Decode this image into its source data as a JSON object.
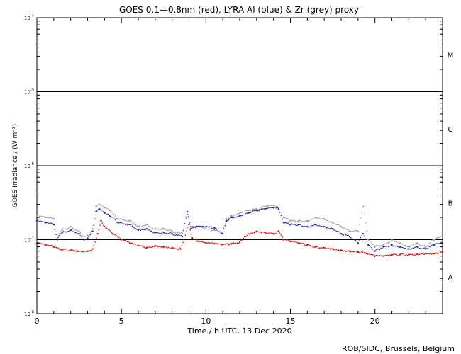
{
  "chart_data": {
    "type": "scatter",
    "title": "GOES 0.1—0.8nm (red), LYRA Al (blue) & Zr (grey) proxy",
    "xlabel": "Time / h UTC, 13 Dec 2020",
    "ylabel": "GOES Irradiance / (W m⁻²)",
    "credit": "ROB/SIDC, Brussels, Belgium",
    "xlim": [
      0,
      24
    ],
    "ylim": [
      1e-08,
      0.0001
    ],
    "yscale": "log",
    "x_ticks": [
      0,
      5,
      10,
      15,
      20
    ],
    "y_ticks": [
      {
        "value": 1e-08,
        "base": "10",
        "exp": "-8"
      },
      {
        "value": 1e-07,
        "base": "10",
        "exp": "-7"
      },
      {
        "value": 1e-06,
        "base": "10",
        "exp": "-6"
      },
      {
        "value": 1e-05,
        "base": "10",
        "exp": "-5"
      },
      {
        "value": 0.0001,
        "base": "10",
        "exp": "-4"
      }
    ],
    "threshold_lines": [
      1e-07,
      1e-06,
      1e-05
    ],
    "flare_classes": [
      {
        "label": "A",
        "value": 3.16e-08
      },
      {
        "label": "B",
        "value": 3.16e-07
      },
      {
        "label": "C",
        "value": 3.16e-06
      },
      {
        "label": "M",
        "value": 3.16e-05
      }
    ],
    "series": [
      {
        "color": "#999999",
        "x": [
          0.0,
          0.5,
          1.0,
          1.2,
          1.5,
          2.0,
          2.5,
          2.8,
          3.0,
          3.3,
          3.5,
          3.7,
          4.0,
          4.3,
          4.8,
          5.5,
          6.0,
          6.5,
          7.0,
          7.5,
          8.0,
          8.6,
          8.9,
          9.1,
          9.5,
          10.0,
          10.5,
          11.0,
          11.2,
          11.5,
          12.0,
          12.5,
          13.0,
          13.5,
          14.0,
          14.3,
          14.6,
          15.0,
          15.5,
          16.0,
          16.5,
          17.0,
          17.5,
          18.0,
          18.5,
          19.0,
          19.3,
          19.6,
          20.0,
          20.5,
          21.0,
          21.5,
          22.0,
          22.5,
          23.0,
          23.5,
          24.0
        ],
        "values": [
          2.1e-07,
          2e-07,
          1.9e-07,
          1.05e-07,
          1.35e-07,
          1.5e-07,
          1.3e-07,
          1.1e-07,
          1.15e-07,
          1.4e-07,
          2.8e-07,
          3e-07,
          2.7e-07,
          2.5e-07,
          1.9e-07,
          1.8e-07,
          1.5e-07,
          1.6e-07,
          1.4e-07,
          1.4e-07,
          1.3e-07,
          1.2e-07,
          2.2e-07,
          1.5e-07,
          1.5e-07,
          1.4e-07,
          1.35e-07,
          1.25e-07,
          1.9e-07,
          2.1e-07,
          2.3e-07,
          2.5e-07,
          2.6e-07,
          2.8e-07,
          2.9e-07,
          2.7e-07,
          2e-07,
          1.8e-07,
          1.8e-07,
          1.8e-07,
          2e-07,
          1.9e-07,
          1.7e-07,
          1.5e-07,
          1.3e-07,
          1.3e-07,
          2.8e-07,
          1e-07,
          8e-08,
          8.5e-08,
          1e-07,
          9e-08,
          8e-08,
          9e-08,
          8e-08,
          1e-07,
          1.1e-07
        ]
      },
      {
        "color": "#1f1fbf",
        "x": [
          0.0,
          0.5,
          1.0,
          1.2,
          1.5,
          2.0,
          2.5,
          2.8,
          3.0,
          3.3,
          3.5,
          3.7,
          4.0,
          4.3,
          4.8,
          5.5,
          6.0,
          6.5,
          7.0,
          7.5,
          8.0,
          8.6,
          8.9,
          9.1,
          9.5,
          10.0,
          10.5,
          11.0,
          11.2,
          11.5,
          12.0,
          12.5,
          13.0,
          13.5,
          14.0,
          14.3,
          14.6,
          15.0,
          15.5,
          16.0,
          16.5,
          17.0,
          17.5,
          18.0,
          18.5,
          19.0,
          19.3,
          19.6,
          20.0,
          20.5,
          21.0,
          21.5,
          22.0,
          22.5,
          23.0,
          23.5,
          24.0
        ],
        "values": [
          1.8e-07,
          1.7e-07,
          1.6e-07,
          1e-07,
          1.25e-07,
          1.35e-07,
          1.2e-07,
          1e-07,
          1.05e-07,
          1.3e-07,
          2.4e-07,
          2.6e-07,
          2.3e-07,
          2.1e-07,
          1.7e-07,
          1.6e-07,
          1.35e-07,
          1.4e-07,
          1.25e-07,
          1.25e-07,
          1.2e-07,
          1.1e-07,
          2.4e-07,
          1.4e-07,
          1.5e-07,
          1.5e-07,
          1.45e-07,
          1.2e-07,
          1.8e-07,
          2e-07,
          2.1e-07,
          2.3e-07,
          2.5e-07,
          2.6e-07,
          2.7e-07,
          2.6e-07,
          1.7e-07,
          1.6e-07,
          1.6e-07,
          1.5e-07,
          1.6e-07,
          1.5e-07,
          1.4e-07,
          1.2e-07,
          1.1e-07,
          9e-08,
          1.2e-07,
          8.5e-08,
          7e-08,
          8e-08,
          8.5e-08,
          8e-08,
          7.5e-08,
          8e-08,
          7.5e-08,
          8.5e-08,
          9e-08
        ]
      },
      {
        "color": "#dd0000",
        "x": [
          0.0,
          0.5,
          1.0,
          1.5,
          2.0,
          2.5,
          3.0,
          3.3,
          3.6,
          3.8,
          4.0,
          4.5,
          5.0,
          5.5,
          6.0,
          6.5,
          7.0,
          7.5,
          8.0,
          8.5,
          9.0,
          9.2,
          9.5,
          10.0,
          10.5,
          11.0,
          11.5,
          12.0,
          12.3,
          12.5,
          13.0,
          13.5,
          14.0,
          14.3,
          14.6,
          15.0,
          15.5,
          16.0,
          16.5,
          17.0,
          17.5,
          18.0,
          18.5,
          19.0,
          19.5,
          20.0,
          20.5,
          21.0,
          21.5,
          22.0,
          22.5,
          23.0,
          23.5,
          24.0
        ],
        "values": [
          9e-08,
          8.5e-08,
          8e-08,
          7.3e-08,
          7.2e-08,
          7e-08,
          7e-08,
          7.5e-08,
          1.2e-07,
          1.8e-07,
          1.5e-07,
          1.2e-07,
          1e-07,
          9e-08,
          8.3e-08,
          7.8e-08,
          8.2e-08,
          8e-08,
          7.8e-08,
          7.5e-08,
          1.6e-07,
          1.05e-07,
          9.5e-08,
          9e-08,
          8.8e-08,
          8.6e-08,
          8.8e-08,
          9.2e-08,
          1.1e-07,
          1.2e-07,
          1.3e-07,
          1.25e-07,
          1.2e-07,
          1.3e-07,
          1e-07,
          9.5e-08,
          9e-08,
          8.5e-08,
          8e-08,
          7.8e-08,
          7.5e-08,
          7.2e-08,
          7e-08,
          6.8e-08,
          6.5e-08,
          6e-08,
          6e-08,
          6.2e-08,
          6.3e-08,
          6.3e-08,
          6.4e-08,
          6.5e-08,
          6.5e-08,
          6.8e-08
        ]
      }
    ]
  }
}
